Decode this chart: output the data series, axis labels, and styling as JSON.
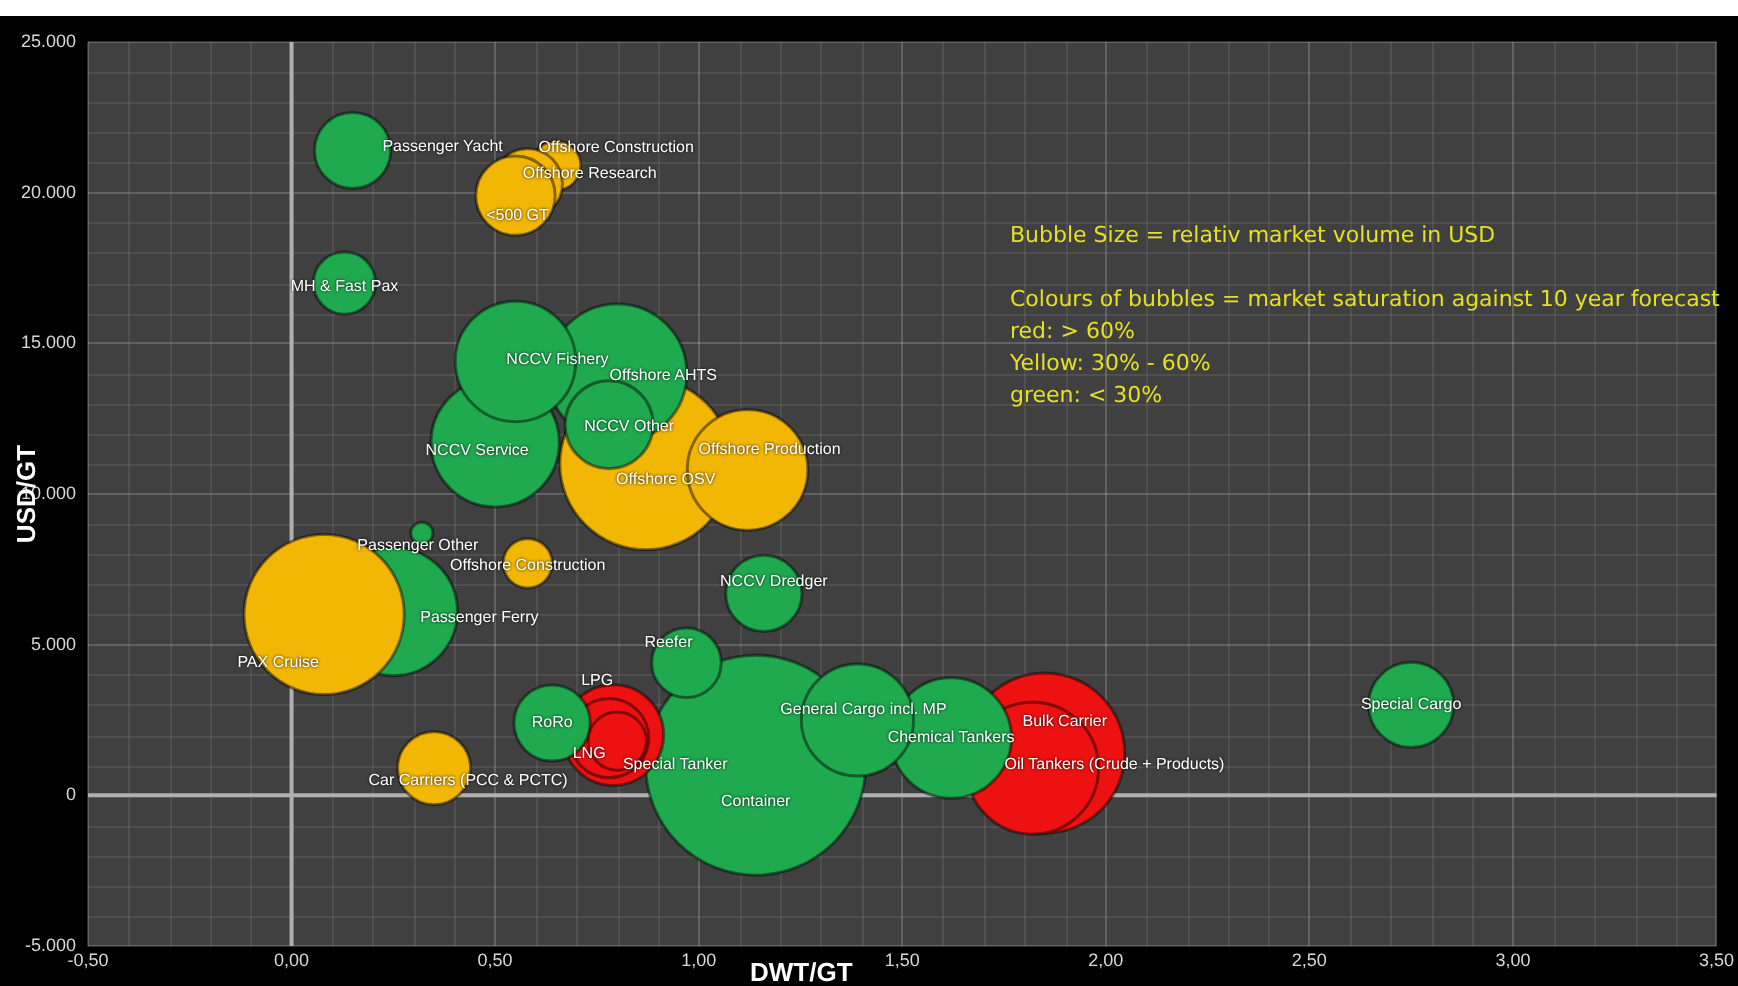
{
  "chart_data": {
    "type": "bubble",
    "xlabel": "DWT/GT",
    "ylabel": "USD/GT",
    "x": [
      1.14,
      0.87,
      0.25,
      0.08,
      1.85,
      0.8,
      1.82,
      0.5,
      0.55,
      1.12,
      1.62,
      1.39,
      0.79,
      0.78,
      2.75,
      0.65,
      0.58,
      0.55,
      0.78,
      0.15,
      1.16,
      0.64,
      0.35,
      0.97,
      0.13,
      0.8,
      0.58,
      0.32
    ],
    "values": [
      1000,
      11000,
      6100,
      6000,
      1400,
      14000,
      900,
      11700,
      14400,
      10800,
      1900,
      2500,
      2000,
      12300,
      3000,
      20900,
      20300,
      19900,
      1900,
      21400,
      6700,
      2400,
      900,
      4400,
      17000,
      1800,
      7700,
      8700
    ],
    "sizes": [
      1,
      0.61,
      0.34,
      0.53,
      0.53,
      0.4,
      0.36,
      0.34,
      0.3,
      0.3,
      0.3,
      0.26,
      0.21,
      0.16,
      0.15,
      0.05,
      0.1,
      0.13,
      0.13,
      0.12,
      0.12,
      0.12,
      0.11,
      0.1,
      0.08,
      0.07,
      0.05,
      0.01
    ],
    "colors": [
      "#1faa4f",
      "#f2b705",
      "#1faa4f",
      "#f2b705",
      "#ee1111",
      "#1faa4f",
      "#ee1111",
      "#1faa4f",
      "#1faa4f",
      "#f2b705",
      "#1faa4f",
      "#1faa4f",
      "#ee1111",
      "#1faa4f",
      "#1faa4f",
      "#f2b705",
      "#f2b705",
      "#f2b705",
      "#ee1111",
      "#1faa4f",
      "#1faa4f",
      "#1faa4f",
      "#f2b705",
      "#1faa4f",
      "#1faa4f",
      "#ee1111",
      "#f2b705",
      "#1faa4f"
    ],
    "xlim": [
      -0.5,
      3.5
    ],
    "xticks": [
      {
        "value": -0.5,
        "label": "-0,50"
      },
      {
        "value": 0,
        "label": "0,00"
      },
      {
        "value": 0.5,
        "label": "0,50"
      },
      {
        "value": 1,
        "label": "1,00"
      },
      {
        "value": 1.5,
        "label": "1,50"
      },
      {
        "value": 2,
        "label": "2,00"
      },
      {
        "value": 2.5,
        "label": "2,50"
      },
      {
        "value": 3,
        "label": "3,00"
      },
      {
        "value": 3.5,
        "label": "3,50"
      }
    ],
    "ylim": [
      -5000,
      25000
    ],
    "yticks": [
      {
        "value": -5000,
        "label": "-5.000"
      },
      0,
      {
        "value": 5000,
        "label": "5.000"
      },
      {
        "value": 10000,
        "label": "10.000"
      },
      {
        "value": 15000,
        "label": "15.000"
      },
      {
        "value": 20000,
        "label": "20.000"
      },
      {
        "value": 25000,
        "label": "25.000"
      }
    ],
    "grid": true,
    "annotations": [
      {
        "text": "Passenger Yacht",
        "x": 0.15,
        "y": 21400
      },
      {
        "text": "Offshore Construction",
        "x": 0.65,
        "y": 20900
      },
      {
        "text": "Offshore Research",
        "x": 0.58,
        "y": 20300
      },
      {
        "text": "<500 GT",
        "x": 0.55,
        "y": 19900
      },
      {
        "text": "MH & Fast Pax",
        "x": 0.13,
        "y": 17000
      },
      {
        "text": "NCCV Fishery",
        "x": 0.55,
        "y": 14400
      },
      {
        "text": "Offshore AHTS",
        "x": 0.8,
        "y": 14000
      },
      {
        "text": "NCCV Other",
        "x": 0.78,
        "y": 12300
      },
      {
        "text": "Offshore OSV",
        "x": 0.87,
        "y": 11000
      },
      {
        "text": "Offshore Production",
        "x": 1.12,
        "y": 10800
      },
      {
        "text": "NCCV Service",
        "x": 0.5,
        "y": 11700
      },
      {
        "text": "Passenger Other",
        "x": 0.32,
        "y": 8700
      },
      {
        "text": "Offshore Construction",
        "x": 0.58,
        "y": 7700
      },
      {
        "text": "NCCV Dredger",
        "x": 1.16,
        "y": 6700
      },
      {
        "text": "Passenger Ferry",
        "x": 0.25,
        "y": 6100
      },
      {
        "text": "PAX Cruise",
        "x": 0.08,
        "y": 6000
      },
      {
        "text": "Reefer",
        "x": 0.97,
        "y": 4400
      },
      {
        "text": "RoRo",
        "x": 0.64,
        "y": 2400
      },
      {
        "text": "LPG",
        "x": 0.79,
        "y": 2000
      },
      {
        "text": "LNG",
        "x": 0.78,
        "y": 1900
      },
      {
        "text": "Special Tanker",
        "x": 0.8,
        "y": 1800
      },
      {
        "text": "Car Carriers (PCC & PCTC)",
        "x": 0.35,
        "y": 900
      },
      {
        "text": "Container",
        "x": 1.14,
        "y": 1000
      },
      {
        "text": "General Cargo incl. MP",
        "x": 1.39,
        "y": 2500
      },
      {
        "text": "Chemical Tankers",
        "x": 1.62,
        "y": 1900
      },
      {
        "text": "Bulk Carrier",
        "x": 1.85,
        "y": 1400
      },
      {
        "text": "Oil Tankers (Crude + Products)",
        "x": 1.82,
        "y": 900
      },
      {
        "text": "Special Cargo",
        "x": 2.75,
        "y": 3000
      },
      "Bubble Size = relativ market volume in USD\n\nColours of bubbles = market saturation against 10 year forecast\nred: > 60%\nYellow: 30% - 60%\ngreen: < 30%"
    ]
  }
}
